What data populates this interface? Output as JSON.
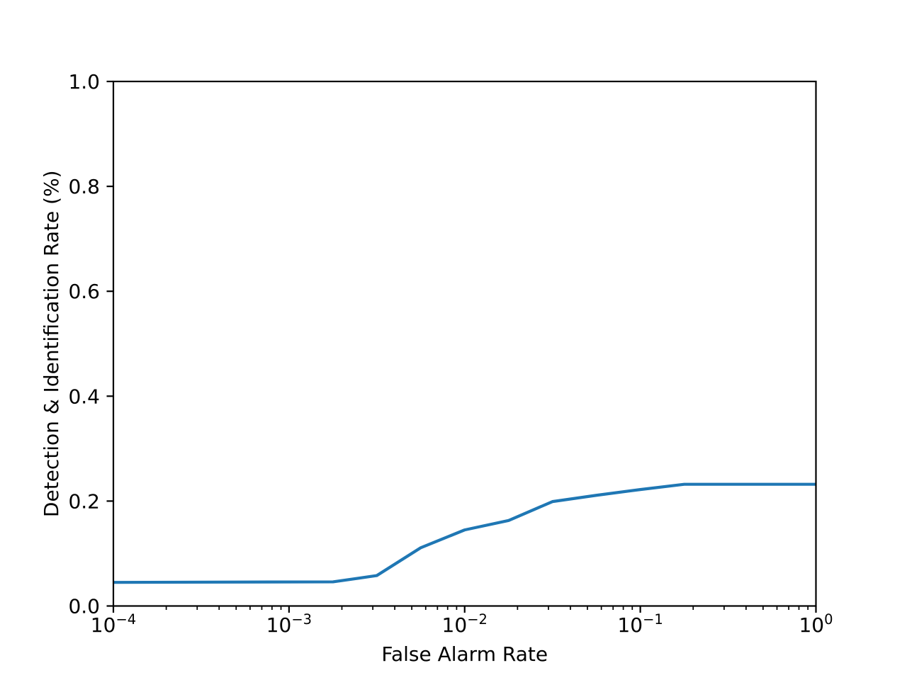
{
  "chart_data": {
    "type": "line",
    "title": "",
    "xlabel": "False Alarm Rate",
    "ylabel": "Detection & Identification Rate (%)",
    "xscale": "log",
    "yscale": "linear",
    "xlim": [
      0.0001,
      1.0
    ],
    "ylim": [
      0.0,
      1.0
    ],
    "grid": false,
    "legend": null,
    "x_tick_exponents": [
      -4,
      -3,
      -2,
      -1,
      0
    ],
    "y_tick_labels": [
      "0.0",
      "0.2",
      "0.4",
      "0.6",
      "0.8",
      "1.0"
    ],
    "series": [
      {
        "name": "detection-identification-rate-curve",
        "color": "#1f77b4",
        "x": [
          0.0001,
          0.00178,
          0.00316,
          0.00562,
          0.01,
          0.0178,
          0.0316,
          0.0562,
          0.1,
          0.178,
          1.0
        ],
        "y": [
          0.045,
          0.046,
          0.058,
          0.111,
          0.145,
          0.163,
          0.199,
          0.211,
          0.222,
          0.232,
          0.232
        ]
      }
    ]
  },
  "colors": {
    "background": "#ffffff",
    "axis": "#000000",
    "tick_label": "#000000"
  }
}
